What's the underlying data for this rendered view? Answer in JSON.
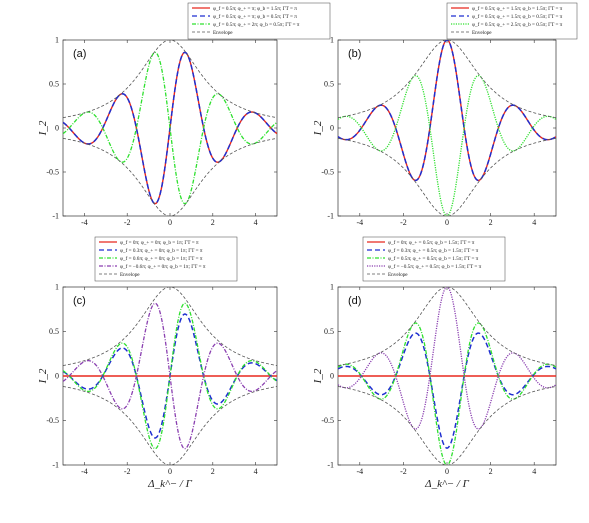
{
  "figure": {
    "xlabel": "Δ_k^− / Γ",
    "ylabel": "I_2",
    "xlim": [
      -5,
      5
    ],
    "ylim": [
      -1,
      1
    ],
    "xticks": [
      -4,
      -2,
      0,
      2,
      4
    ],
    "yticks": [
      -1,
      -0.5,
      0,
      0.5,
      1
    ],
    "ytick_labels": [
      "-1",
      "-0.5",
      "0",
      "0.5",
      "1"
    ],
    "xtick_labels": [
      "-4",
      "-2",
      "0",
      "2",
      "4"
    ]
  },
  "chart_data": [
    {
      "type": "line",
      "panel": "(a)",
      "xlabel": "",
      "ylabel": "I_2",
      "xlim": [
        -5,
        5
      ],
      "ylim": [
        -1,
        1
      ],
      "legend_position": "top-right",
      "series": [
        {
          "name": "φ_f = 0.5π; φ_+ = π; φ_b = 1.5π; ΓT = π",
          "color": "#e8281e",
          "dash": "solid",
          "width": 1.4,
          "func": "env*sin(2x)"
        },
        {
          "name": "φ_f = 0.5π; φ_+ = π; φ_b = 0.5π; ΓT = π",
          "color": "#1f2fd0",
          "dash": "5,3",
          "width": 1.5,
          "func": "env*sin(2x)"
        },
        {
          "name": "φ_f = 0.5π; φ_+ = 2π; φ_b = 0.5π; ΓT = π",
          "color": "#2ee02e",
          "dash": "4,1.5,1,1.5",
          "width": 1.3,
          "func": "-env*sin(2x)"
        },
        {
          "name": "Envelope",
          "color": "#555555",
          "dash": "3,2",
          "width": 0.8,
          "func": "envelope"
        }
      ]
    },
    {
      "type": "line",
      "panel": "(b)",
      "xlabel": "",
      "ylabel": "",
      "xlim": [
        -5,
        5
      ],
      "ylim": [
        -1,
        1
      ],
      "legend_position": "top-right",
      "series": [
        {
          "name": "φ_f = 0.5π; φ_+ = 1.5π; φ_b = 1.5π; ΓT = π",
          "color": "#e8281e",
          "dash": "solid",
          "width": 1.4,
          "func": "env*cos(2x)"
        },
        {
          "name": "φ_f = 0.5π; φ_+ = 1.5π; φ_b = 0.5π; ΓT = π",
          "color": "#1f2fd0",
          "dash": "5,3",
          "width": 1.5,
          "func": "env*cos(2x)"
        },
        {
          "name": "φ_f = 0.5π; φ_+ = 2.5π; φ_b = 0.5π; ΓT = π",
          "color": "#2ee02e",
          "dash": "1.2,1.2",
          "width": 1.3,
          "func": "-env*cos(2x)"
        },
        {
          "name": "Envelope",
          "color": "#555555",
          "dash": "3,2",
          "width": 0.8,
          "func": "envelope"
        }
      ]
    },
    {
      "type": "line",
      "panel": "(c)",
      "xlabel": "Δ_k^− / Γ",
      "ylabel": "I_2",
      "xlim": [
        -5,
        5
      ],
      "ylim": [
        -1,
        1
      ],
      "legend_position": "top-center",
      "series": [
        {
          "name": "φ_f = 0π; φ_+ = 0π; φ_b = 1π; ΓT = π",
          "color": "#e8281e",
          "dash": "solid",
          "width": 1.4,
          "func": "zero"
        },
        {
          "name": "φ_f = 0.3π; φ_+ = 0π; φ_b = 1π; ΓT = π",
          "color": "#1f2fd0",
          "dash": "5,3",
          "width": 1.5,
          "func": "env*sin(2x)*0.81"
        },
        {
          "name": "φ_f = 0.6π; φ_+ = 0π; φ_b = 1π; ΓT = π",
          "color": "#2ee02e",
          "dash": "4,1.5,1,1.5",
          "width": 1.3,
          "func": "env*sin(2x)*0.95"
        },
        {
          "name": "φ_f = −0.6π; φ_+ = 0π; φ_b = 1π; ΓT = π",
          "color": "#8a3fb0",
          "dash": "4,1.5,1,1.5",
          "width": 1.3,
          "func": "-env*sin(2x)*0.95"
        },
        {
          "name": "Envelope",
          "color": "#555555",
          "dash": "3,2",
          "width": 0.8,
          "func": "envelope"
        }
      ]
    },
    {
      "type": "line",
      "panel": "(d)",
      "xlabel": "Δ_k^− / Γ",
      "ylabel": "I_2",
      "xlim": [
        -5,
        5
      ],
      "ylim": [
        -1,
        1
      ],
      "legend_position": "top-center",
      "series": [
        {
          "name": "φ_f = 0π; φ_+ = 0.5π; φ_b = 1.5π; ΓT = π",
          "color": "#e8281e",
          "dash": "solid",
          "width": 1.4,
          "func": "zero"
        },
        {
          "name": "φ_f = 0.3π; φ_+ = 0.5π; φ_b = 1.5π; ΓT = π",
          "color": "#1f2fd0",
          "dash": "5,3",
          "width": 1.5,
          "func": "-env*cos(2x)*0.81"
        },
        {
          "name": "φ_f = 0.5π; φ_+ = 0.5π; φ_b = 1.5π; ΓT = π",
          "color": "#2ee02e",
          "dash": "4,1.5,1,1.5",
          "width": 1.3,
          "func": "-env*cos(2x)"
        },
        {
          "name": "φ_f = −0.5π; φ_+ = 0.5π; φ_b = 1.5π; ΓT = π",
          "color": "#8a3fb0",
          "dash": "1.2,1.2",
          "width": 1.3,
          "func": "env*cos(2x)"
        },
        {
          "name": "Envelope",
          "color": "#555555",
          "dash": "3,2",
          "width": 0.8,
          "func": "envelope"
        }
      ]
    }
  ]
}
